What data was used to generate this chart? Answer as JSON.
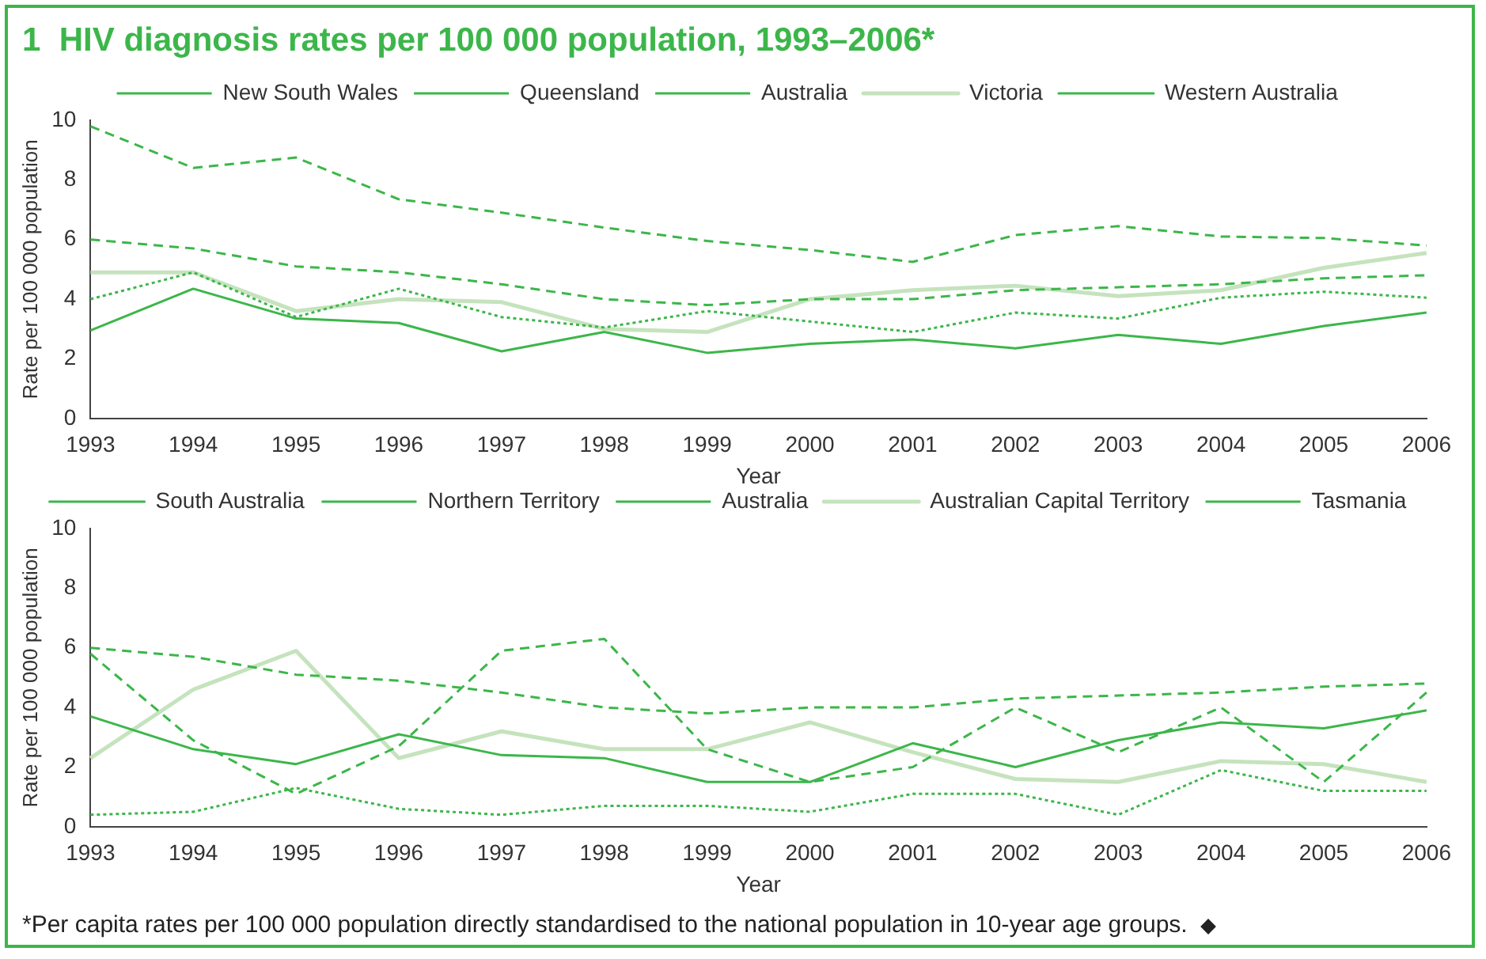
{
  "chart_data": [
    {
      "type": "line",
      "title": "1  HIV diagnosis rates per 100 000 population, 1993–2006*",
      "xlabel": "Year",
      "ylabel": "Rate per 100 000 population",
      "categories": [
        "1993",
        "1994",
        "1995",
        "1996",
        "1997",
        "1998",
        "1999",
        "2000",
        "2001",
        "2002",
        "2003",
        "2004",
        "2005",
        "2006"
      ],
      "ylim": [
        0,
        10
      ],
      "yticks": [
        0,
        2,
        4,
        6,
        8,
        10
      ],
      "grid": false,
      "legend": "top",
      "marker": "none",
      "series": [
        {
          "name": "New South Wales",
          "color": "#3cb64a",
          "line_style": "dashed",
          "values": [
            9.8,
            8.4,
            8.75,
            7.35,
            6.9,
            6.4,
            5.95,
            5.65,
            5.25,
            6.15,
            6.45,
            6.1,
            6.05,
            5.8
          ]
        },
        {
          "name": "Queensland",
          "color": "#3cb64a",
          "line_style": "dotted",
          "values": [
            4.0,
            4.9,
            3.4,
            4.35,
            3.4,
            3.05,
            3.6,
            3.25,
            2.9,
            3.55,
            3.35,
            4.05,
            4.25,
            4.05
          ]
        },
        {
          "name": "Australia",
          "color": "#3cb64a",
          "line_style": "dashed",
          "values": [
            6.0,
            5.7,
            5.1,
            4.9,
            4.5,
            4.0,
            3.8,
            4.0,
            4.0,
            4.3,
            4.4,
            4.5,
            4.7,
            4.8
          ]
        },
        {
          "name": "Victoria",
          "color": "#c5e3bd",
          "line_style": "solid",
          "values": [
            4.9,
            4.9,
            3.6,
            4.0,
            3.9,
            3.0,
            2.9,
            4.0,
            4.3,
            4.45,
            4.1,
            4.3,
            5.05,
            5.55
          ]
        },
        {
          "name": "Western Australia",
          "color": "#3cb64a",
          "line_style": "solid",
          "values": [
            2.95,
            4.35,
            3.35,
            3.2,
            2.25,
            2.9,
            2.2,
            2.5,
            2.65,
            2.35,
            2.8,
            2.5,
            3.1,
            3.55
          ]
        }
      ]
    },
    {
      "type": "line",
      "xlabel": "Year",
      "ylabel": "Rate per 100 000 population",
      "categories": [
        "1993",
        "1994",
        "1995",
        "1996",
        "1997",
        "1998",
        "1999",
        "2000",
        "2001",
        "2002",
        "2003",
        "2004",
        "2005",
        "2006"
      ],
      "ylim": [
        0,
        10
      ],
      "yticks": [
        0,
        2,
        4,
        6,
        8,
        10
      ],
      "grid": false,
      "legend": "top",
      "marker": "none",
      "annotations": [
        "*Per capita rates per 100 000 population directly standardised to the national population in 10-year age groups."
      ],
      "series": [
        {
          "name": "South Australia",
          "color": "#3cb64a",
          "line_style": "solid",
          "values": [
            3.7,
            2.6,
            2.1,
            3.1,
            2.4,
            2.3,
            1.5,
            1.5,
            2.8,
            2.0,
            2.9,
            3.5,
            3.3,
            3.9
          ]
        },
        {
          "name": "Northern Territory",
          "color": "#3cb64a",
          "line_style": "dashed",
          "values": [
            5.8,
            2.9,
            1.1,
            2.7,
            5.9,
            6.3,
            2.6,
            1.5,
            2.0,
            4.0,
            2.5,
            4.0,
            1.5,
            4.5
          ]
        },
        {
          "name": "Australia",
          "color": "#3cb64a",
          "line_style": "dashed",
          "values": [
            6.0,
            5.7,
            5.1,
            4.9,
            4.5,
            4.0,
            3.8,
            4.0,
            4.0,
            4.3,
            4.4,
            4.5,
            4.7,
            4.8
          ]
        },
        {
          "name": "Australian Capital Territory",
          "color": "#c5e3bd",
          "line_style": "solid",
          "values": [
            2.3,
            4.6,
            5.9,
            2.3,
            3.2,
            2.6,
            2.6,
            3.5,
            2.5,
            1.6,
            1.5,
            2.2,
            2.1,
            1.5
          ]
        },
        {
          "name": "Tasmania",
          "color": "#3cb64a",
          "line_style": "dotted",
          "values": [
            0.4,
            0.5,
            1.3,
            0.6,
            0.4,
            0.7,
            0.7,
            0.5,
            1.1,
            1.1,
            0.4,
            1.9,
            1.2,
            1.2
          ]
        }
      ]
    }
  ]
}
